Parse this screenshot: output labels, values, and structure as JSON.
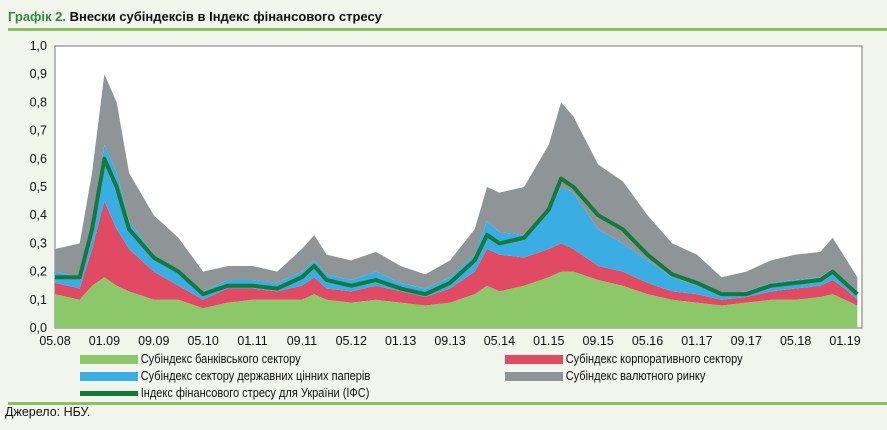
{
  "header": {
    "number": "Графік 2.",
    "title": "Внески субіндексів в Індекс фінансового стресу"
  },
  "source": "Джерело: НБУ.",
  "chart_data": {
    "type": "area",
    "stacked": true,
    "ylim": [
      0,
      1.0
    ],
    "yticks": [
      "0,0",
      "0,1",
      "0,2",
      "0,3",
      "0,4",
      "0,5",
      "0,6",
      "0,7",
      "0,8",
      "0,9",
      "1,0"
    ],
    "xticks": [
      "05.08",
      "01.09",
      "09.09",
      "05.10",
      "01.11",
      "09.11",
      "05.12",
      "01.13",
      "09.13",
      "05.14",
      "01.15",
      "09.15",
      "05.16",
      "01.17",
      "09.17",
      "05.18",
      "01.19"
    ],
    "grid": false,
    "legend_placement": "bottom",
    "x": [
      "05.08",
      "09.08",
      "11.08",
      "01.09",
      "03.09",
      "05.09",
      "09.09",
      "01.10",
      "05.10",
      "09.10",
      "01.11",
      "05.11",
      "09.11",
      "11.11",
      "01.12",
      "05.12",
      "09.12",
      "01.13",
      "05.13",
      "09.13",
      "01.14",
      "03.14",
      "05.14",
      "09.14",
      "01.15",
      "03.15",
      "05.15",
      "09.15",
      "01.16",
      "05.16",
      "09.16",
      "01.17",
      "05.17",
      "09.17",
      "01.18",
      "05.18",
      "09.18",
      "11.18",
      "01.19",
      "03.19"
    ],
    "series": [
      {
        "name": "Субіндекс банківського сектору",
        "color": "#8cc86a",
        "kind": "area",
        "values": [
          0.12,
          0.1,
          0.15,
          0.18,
          0.15,
          0.13,
          0.1,
          0.1,
          0.07,
          0.09,
          0.1,
          0.1,
          0.1,
          0.12,
          0.1,
          0.09,
          0.1,
          0.09,
          0.08,
          0.09,
          0.12,
          0.15,
          0.13,
          0.15,
          0.18,
          0.2,
          0.2,
          0.17,
          0.15,
          0.12,
          0.1,
          0.09,
          0.08,
          0.09,
          0.1,
          0.1,
          0.11,
          0.12,
          0.1,
          0.08
        ]
      },
      {
        "name": "Субіндекс корпоративного сектору",
        "color": "#e04a63",
        "kind": "area",
        "values": [
          0.04,
          0.04,
          0.13,
          0.27,
          0.2,
          0.15,
          0.1,
          0.05,
          0.03,
          0.05,
          0.04,
          0.03,
          0.05,
          0.06,
          0.04,
          0.04,
          0.05,
          0.04,
          0.03,
          0.05,
          0.08,
          0.13,
          0.13,
          0.1,
          0.1,
          0.1,
          0.08,
          0.05,
          0.05,
          0.04,
          0.03,
          0.03,
          0.02,
          0.02,
          0.03,
          0.04,
          0.04,
          0.05,
          0.04,
          0.02
        ]
      },
      {
        "name": "Субіндекс сектору державних цінних паперів",
        "color": "#3aaee3",
        "kind": "area",
        "values": [
          0.04,
          0.04,
          0.1,
          0.2,
          0.2,
          0.1,
          0.06,
          0.05,
          0.03,
          0.03,
          0.03,
          0.03,
          0.05,
          0.06,
          0.05,
          0.04,
          0.05,
          0.03,
          0.03,
          0.04,
          0.06,
          0.1,
          0.08,
          0.08,
          0.14,
          0.2,
          0.2,
          0.13,
          0.1,
          0.08,
          0.05,
          0.03,
          0.02,
          0.02,
          0.03,
          0.03,
          0.03,
          0.04,
          0.03,
          0.03
        ]
      },
      {
        "name": "Субіндекс валютного ринку",
        "color": "#8f9596",
        "kind": "area",
        "values": [
          0.08,
          0.12,
          0.17,
          0.25,
          0.25,
          0.17,
          0.14,
          0.12,
          0.07,
          0.05,
          0.05,
          0.04,
          0.08,
          0.09,
          0.07,
          0.07,
          0.07,
          0.06,
          0.05,
          0.06,
          0.09,
          0.12,
          0.14,
          0.17,
          0.23,
          0.3,
          0.27,
          0.23,
          0.22,
          0.16,
          0.12,
          0.11,
          0.06,
          0.07,
          0.08,
          0.09,
          0.09,
          0.11,
          0.08,
          0.05
        ]
      },
      {
        "name": "Індекс фінансового стресу для України (ІФС)",
        "color": "#137a3c",
        "kind": "line",
        "values": [
          0.18,
          0.18,
          0.35,
          0.6,
          0.5,
          0.35,
          0.25,
          0.2,
          0.12,
          0.15,
          0.15,
          0.14,
          0.18,
          0.22,
          0.17,
          0.15,
          0.17,
          0.14,
          0.12,
          0.16,
          0.24,
          0.33,
          0.3,
          0.32,
          0.42,
          0.53,
          0.5,
          0.4,
          0.35,
          0.26,
          0.19,
          0.16,
          0.12,
          0.12,
          0.15,
          0.16,
          0.17,
          0.2,
          0.16,
          0.12
        ]
      }
    ]
  }
}
